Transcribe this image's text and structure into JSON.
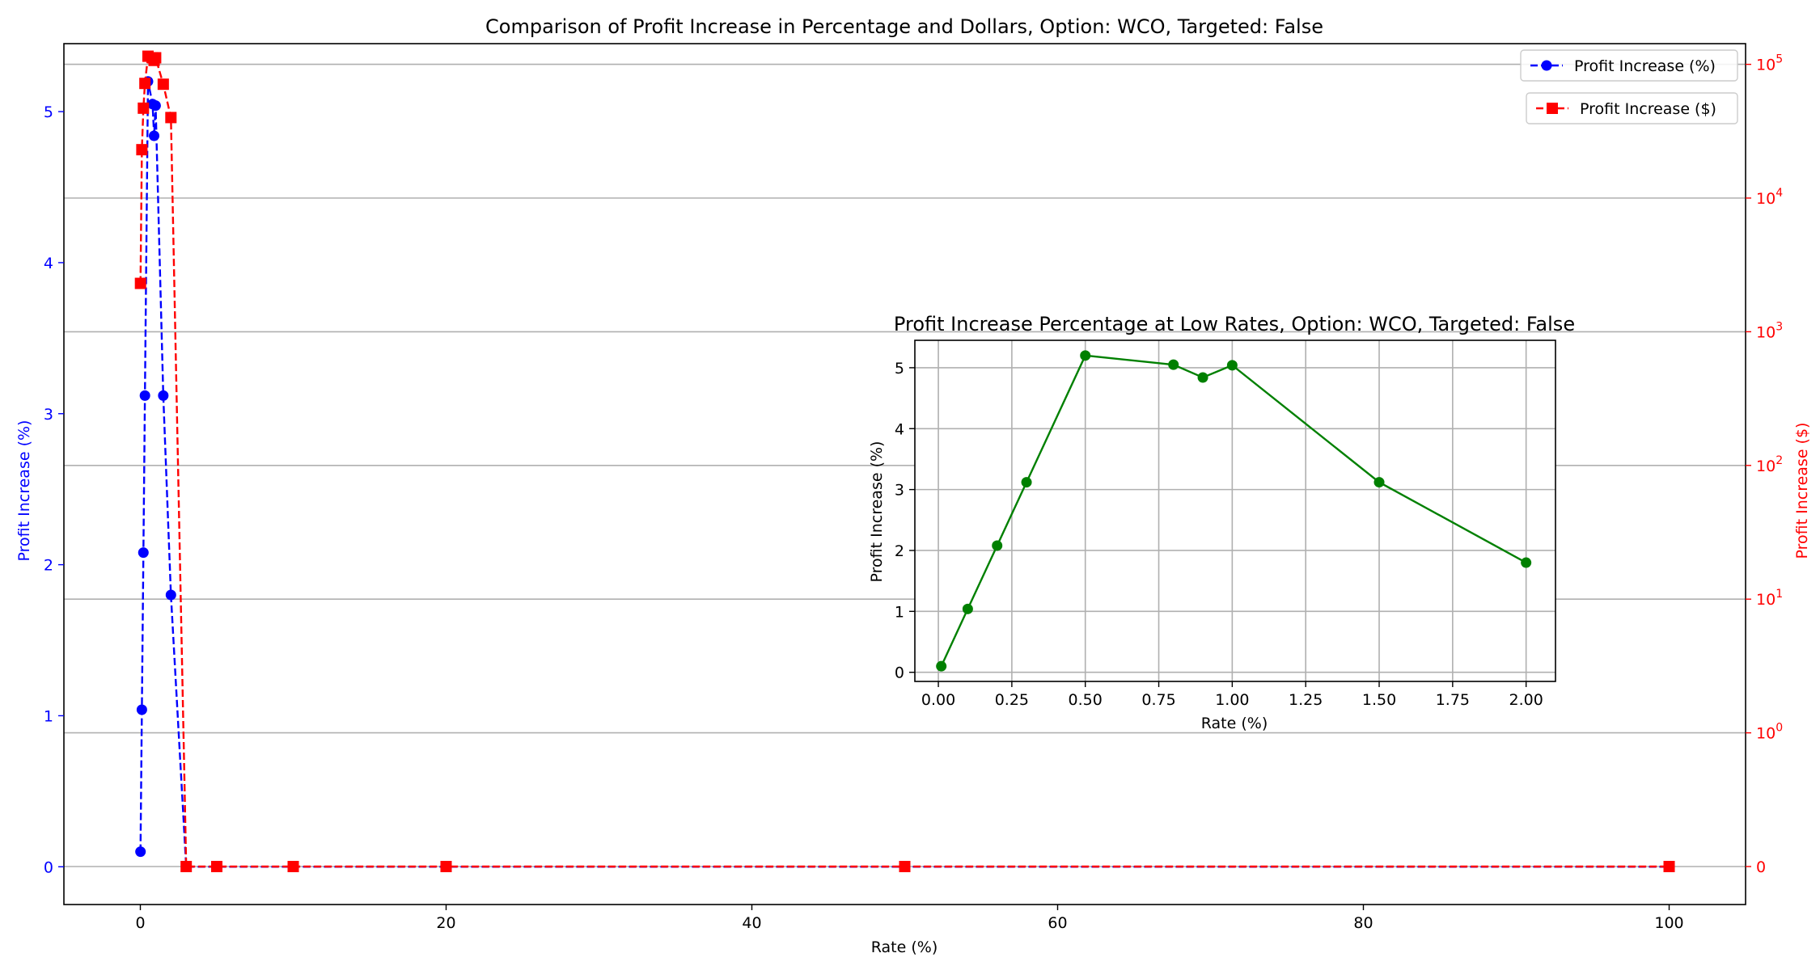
{
  "chart_data": [
    {
      "type": "line",
      "title": "Comparison of Profit Increase in Percentage and Dollars, Option: WCO, Targeted: False",
      "xlabel": "Rate (%)",
      "ylabel_left": "Profit Increase (%)",
      "ylabel_right": "Profit Increase ($)",
      "xlim": [
        -5,
        105
      ],
      "ylim_left": [
        -0.25,
        5.45
      ],
      "yscale_right": "symlog",
      "grid": "right-axis horizontal lines",
      "legend": "top-right",
      "x_ticks": [
        0,
        20,
        40,
        60,
        80,
        100
      ],
      "y_ticks_left": [
        0,
        1,
        2,
        3,
        4,
        5
      ],
      "y_ticks_right": [
        {
          "value": 0,
          "label": "0"
        },
        {
          "value": 1,
          "label": "10^0"
        },
        {
          "value": 10,
          "label": "10^1"
        },
        {
          "value": 100,
          "label": "10^2"
        },
        {
          "value": 1000,
          "label": "10^3"
        },
        {
          "value": 10000,
          "label": "10^4"
        },
        {
          "value": 100000,
          "label": "10^5"
        }
      ],
      "series": [
        {
          "name": "Profit Increase (%)",
          "axis": "left",
          "color": "#0000ff",
          "marker": "circle",
          "x": [
            0.01,
            0.1,
            0.2,
            0.3,
            0.5,
            0.8,
            0.9,
            1.0,
            1.5,
            2.0,
            3.0,
            5.0,
            10.0,
            20.0,
            50.0,
            100.0
          ],
          "y": [
            0.1,
            1.04,
            2.08,
            3.12,
            5.2,
            5.05,
            4.84,
            5.04,
            3.12,
            1.8,
            0,
            0,
            0,
            0,
            0,
            0
          ]
        },
        {
          "name": "Profit Increase ($)",
          "axis": "right",
          "color": "#ff0000",
          "marker": "square",
          "x": [
            0.01,
            0.1,
            0.2,
            0.3,
            0.5,
            0.8,
            0.9,
            1.0,
            1.5,
            2.0,
            3.0,
            5.0,
            10.0,
            20.0,
            50.0,
            100.0
          ],
          "y": [
            2300,
            23000,
            47000,
            72000,
            115000,
            112000,
            107000,
            112000,
            71000,
            40000,
            0,
            0,
            0,
            0,
            0,
            0
          ]
        }
      ]
    },
    {
      "type": "line",
      "title": "Profit Increase Percentage at Low Rates, Option: WCO, Targeted: False",
      "xlabel": "Rate (%)",
      "ylabel": "Profit Increase (%)",
      "xlim": [
        -0.08,
        2.1
      ],
      "ylim": [
        -0.15,
        5.45
      ],
      "grid": true,
      "x_ticks": [
        "0.00",
        "0.25",
        "0.50",
        "0.75",
        "1.00",
        "1.25",
        "1.50",
        "1.75",
        "2.00"
      ],
      "y_ticks": [
        0,
        1,
        2,
        3,
        4,
        5
      ],
      "series": [
        {
          "name": "",
          "color": "#008000",
          "marker": "circle",
          "x": [
            0.01,
            0.1,
            0.2,
            0.3,
            0.5,
            0.8,
            0.9,
            1.0,
            1.5,
            2.0
          ],
          "y": [
            0.1,
            1.04,
            2.08,
            3.12,
            5.2,
            5.05,
            4.84,
            5.04,
            3.12,
            1.8
          ]
        }
      ]
    }
  ]
}
